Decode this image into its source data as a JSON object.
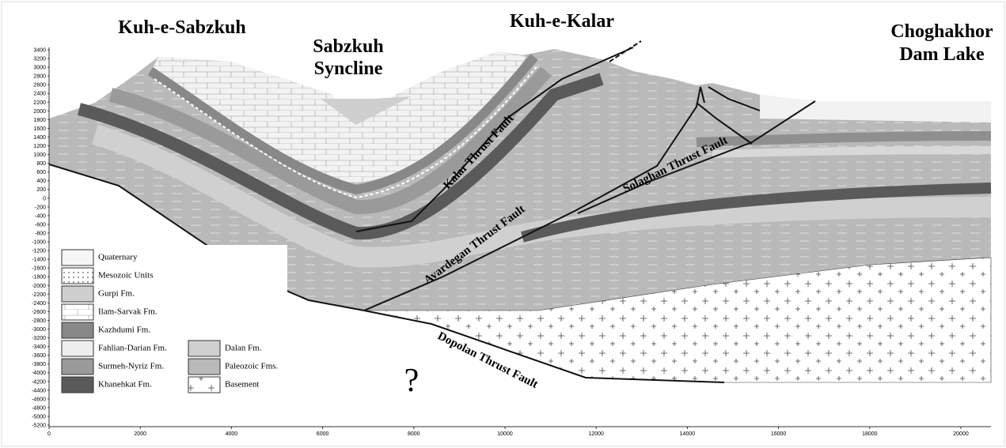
{
  "titles": {
    "left": "Kuh-e-Sabzkuh",
    "syncline": [
      "Sabzkuh",
      "Syncline"
    ],
    "center": "Kuh-e-Kalar",
    "right": [
      "Choghakhor",
      "Dam Lake"
    ]
  },
  "faults": {
    "kalar": "Kalar Thrust Fault",
    "avardegan": "Avardegan Thrust Fault",
    "solaghan": "Solaghan Thrust Fault",
    "dopolan": "Dopolan Thrust Fault"
  },
  "unknown": "?",
  "legend": {
    "left": [
      "Quaternary",
      "Mesozoic Units",
      "Gurpi Fm.",
      "Ilam-Sarvak Fm.",
      "Kazhdumi Fm.",
      "Fahlian-Darian Fm.",
      "Surmeh-Nyriz Fm.",
      "Khanehkat Fm."
    ],
    "right": [
      "Dalan Fm.",
      "Paleozoic Fms.",
      "Basement"
    ]
  },
  "axes": {
    "y_labels": [
      3400,
      3200,
      3000,
      2800,
      2600,
      2400,
      2200,
      2000,
      1800,
      1600,
      1400,
      1200,
      1000,
      800,
      600,
      400,
      200,
      0,
      -200,
      -400,
      -600,
      -800,
      -1000,
      -1200,
      -1400,
      -1600,
      -1800,
      -2000,
      -2200,
      -2400,
      -2600,
      -2800,
      -3000,
      -3200,
      -3400,
      -3600,
      -3800,
      -4000,
      -4200,
      -4400,
      -4600,
      -4800,
      -5000,
      -5200
    ],
    "x_labels": [
      0,
      2000,
      4000,
      6000,
      8000,
      10000,
      12000,
      14000,
      16000,
      18000,
      20000
    ]
  }
}
